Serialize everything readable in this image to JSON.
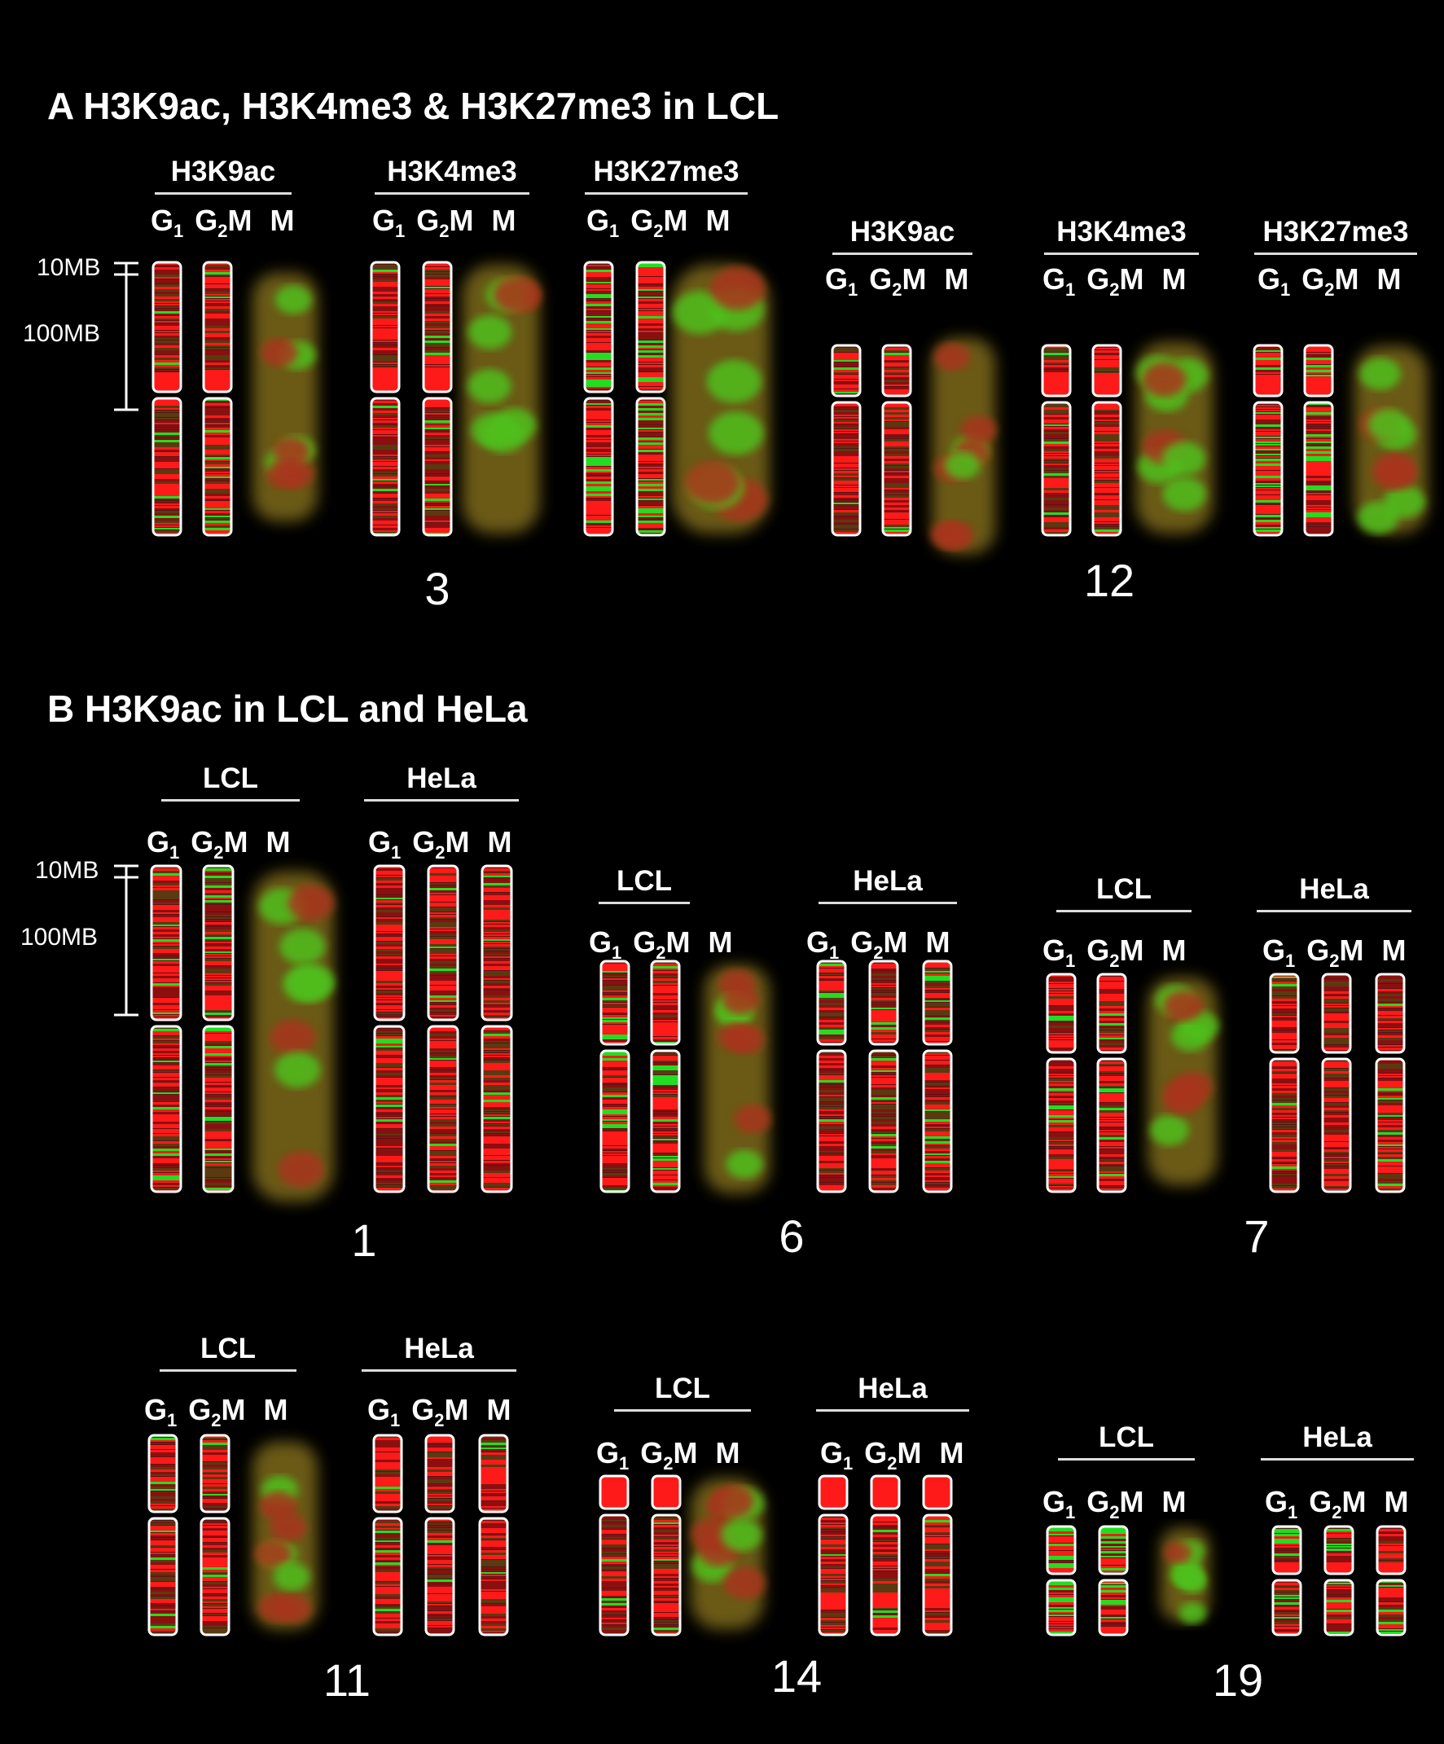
{
  "panel_a": {
    "title": "A H3K9ac, H3K4me3 & H3K27me3 in LCL",
    "groups": [
      {
        "title": "H3K9ac"
      },
      {
        "title": "H3K4me3"
      },
      {
        "title": "H3K27me3"
      },
      {
        "title": "H3K9ac"
      },
      {
        "title": "H3K4me3"
      },
      {
        "title": "H3K27me3"
      }
    ],
    "chromosomes": [
      "3",
      "12"
    ]
  },
  "panel_b": {
    "title": "B H3K9ac in LCL and HeLa",
    "cell_lines": [
      "LCL",
      "HeLa"
    ],
    "chromosomes": [
      "1",
      "6",
      "7",
      "11",
      "14",
      "19"
    ]
  },
  "phase_labels": {
    "g1_base": "G",
    "g1_sub": "1",
    "g2m_base": "G",
    "g2m_sub": "2",
    "g2m_tail": "M",
    "m": "M"
  },
  "scale": {
    "small": "10MB",
    "large": "100MB"
  },
  "colors": {
    "background": "#000000",
    "active": "#ff1a1a",
    "inactive": "#22dd22",
    "outline": "#ffffff"
  }
}
